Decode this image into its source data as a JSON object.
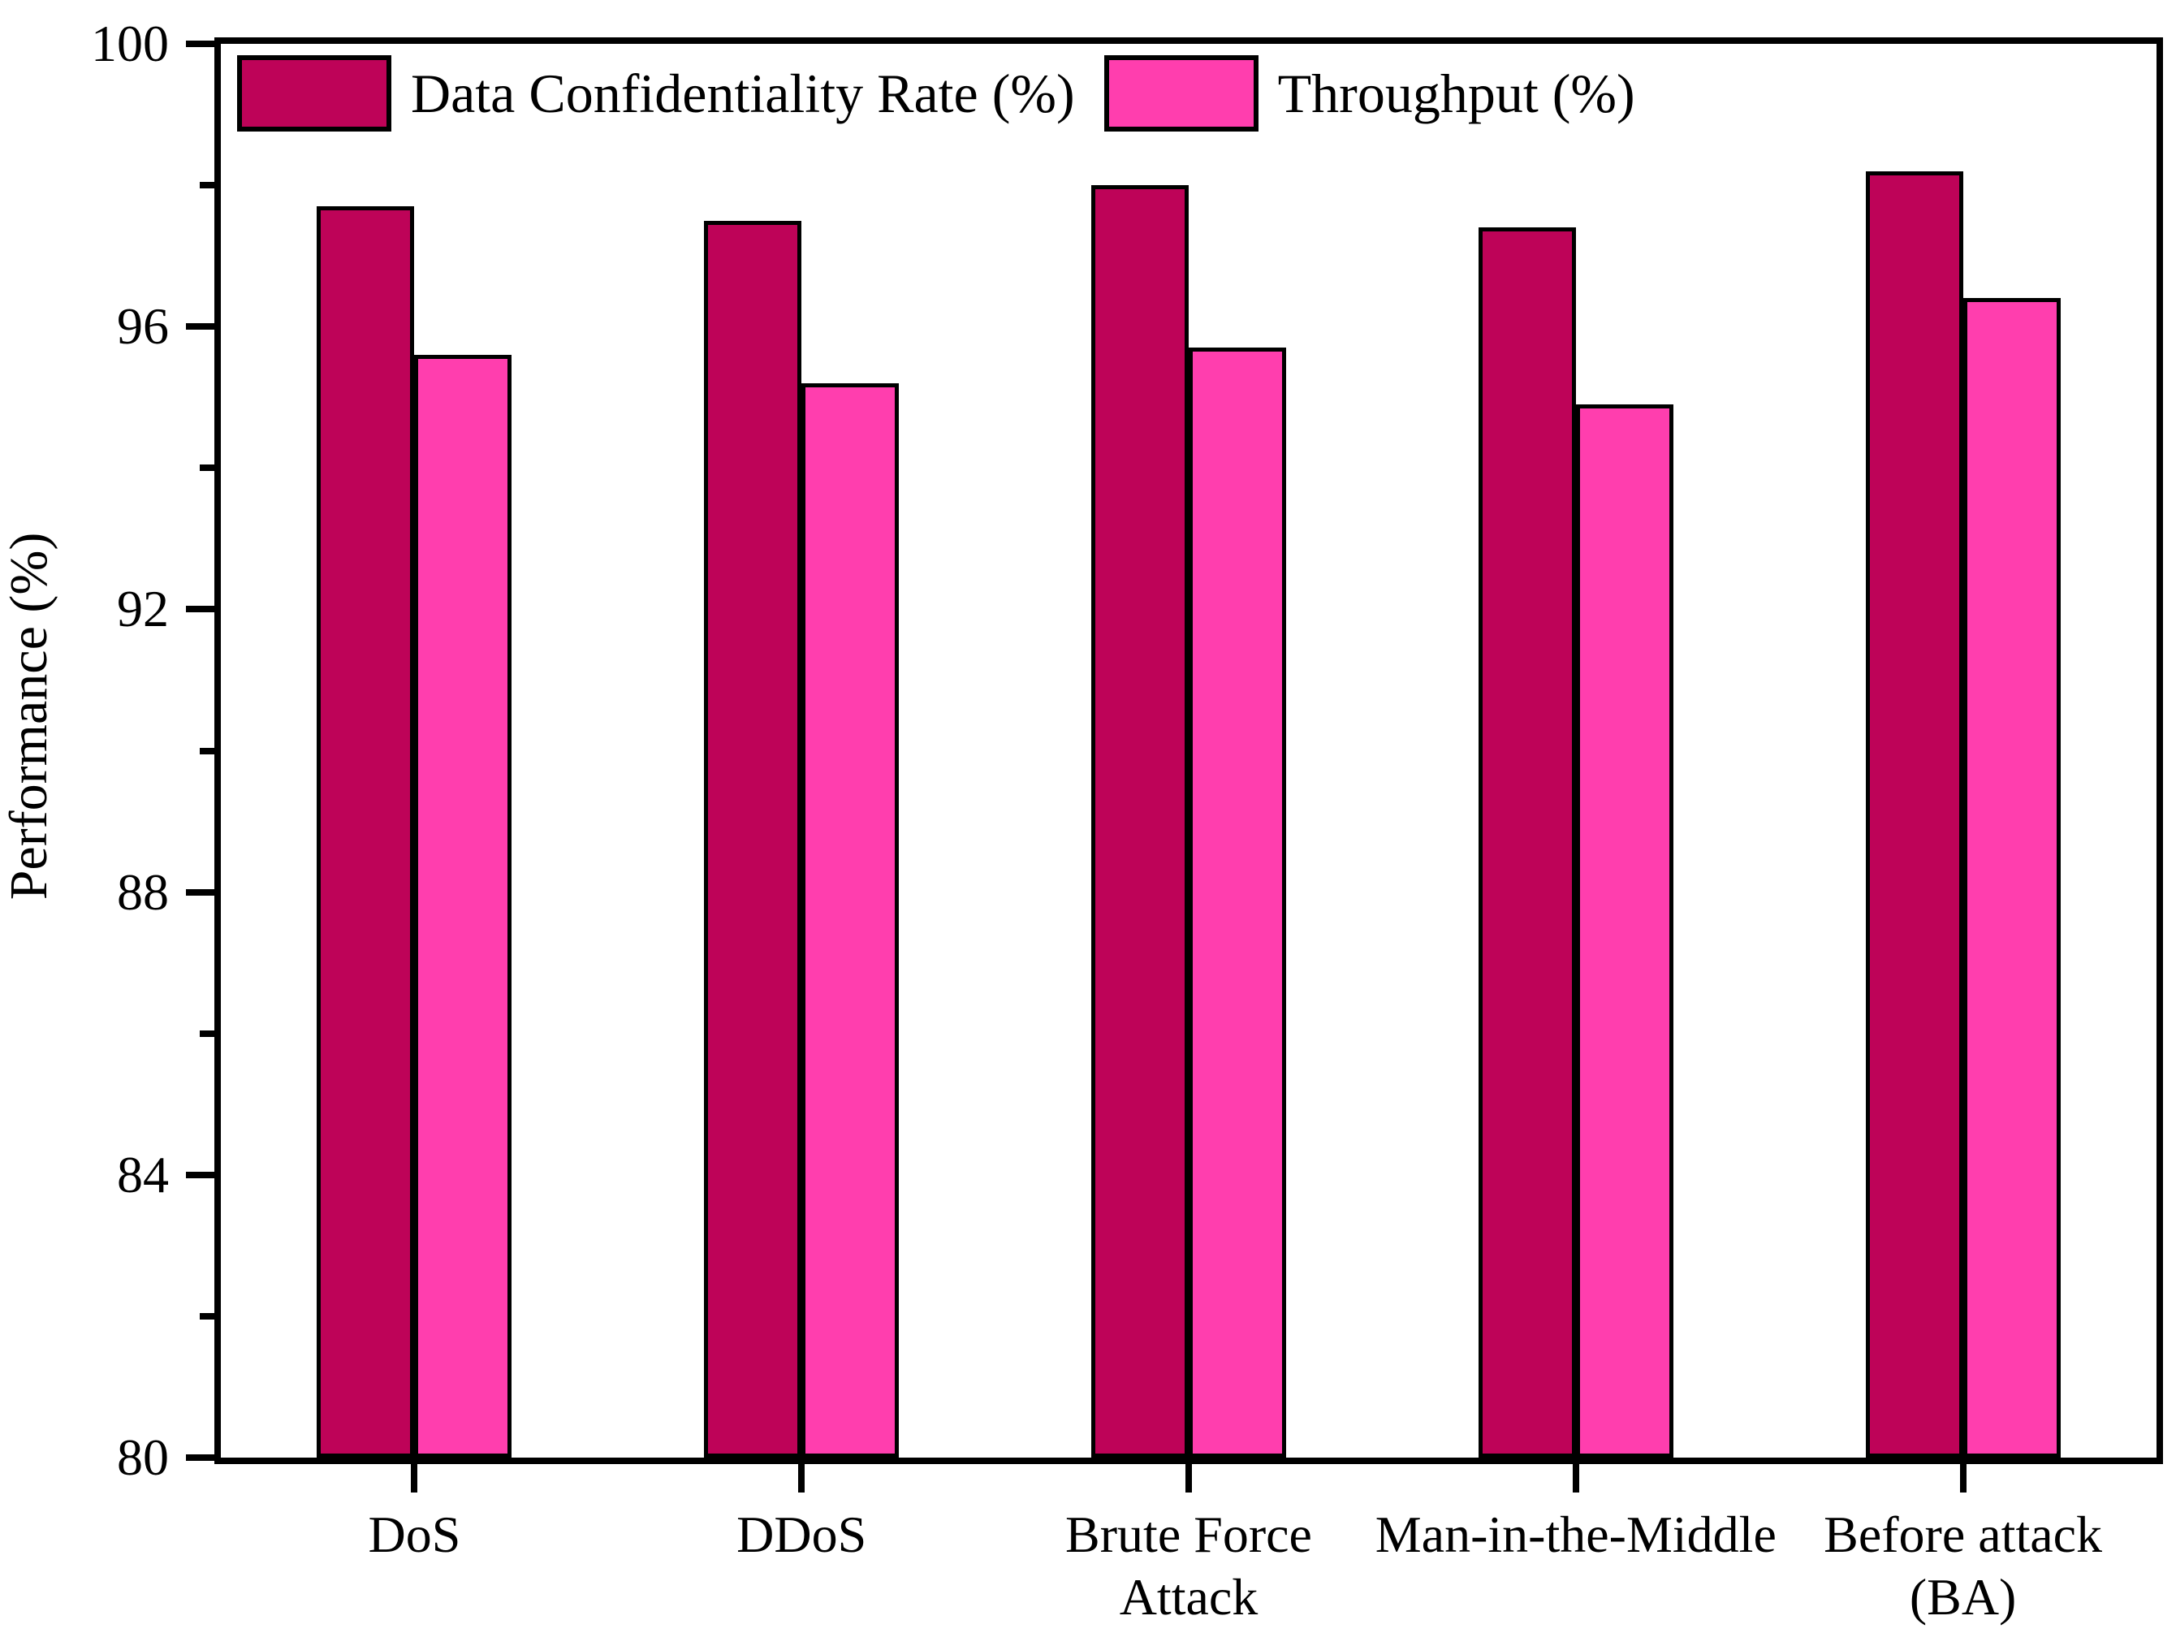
{
  "figure": {
    "background": "#ffffff",
    "axis_color": "#000000",
    "text_color": "#000000"
  },
  "chart_data": {
    "type": "bar",
    "title": "",
    "categories": [
      "DoS",
      "DDoS",
      "Brute Force\nAttack",
      "Man-in-the-Middle",
      "Before attack\n(BA)"
    ],
    "series": [
      {
        "id": "data-confidentiality-rate",
        "name": "Data Confidentiality Rate (%)",
        "color": "#BE0358",
        "values": [
          97.7,
          97.5,
          98.0,
          97.4,
          98.2
        ]
      },
      {
        "id": "throughput",
        "name": "Throughput (%)",
        "color": "#FF3EAE",
        "values": [
          95.6,
          95.2,
          95.7,
          94.9,
          96.4
        ]
      }
    ],
    "xlabel": "",
    "ylabel": "Performance (%)",
    "ylim": [
      80,
      100
    ],
    "y_major_ticks": [
      80,
      84,
      88,
      92,
      96,
      100
    ],
    "y_minor_ticks": [
      82,
      86,
      90,
      94,
      98
    ],
    "grid": false,
    "legend_position": "top-left-inside",
    "bar_border_color": "#000000"
  }
}
